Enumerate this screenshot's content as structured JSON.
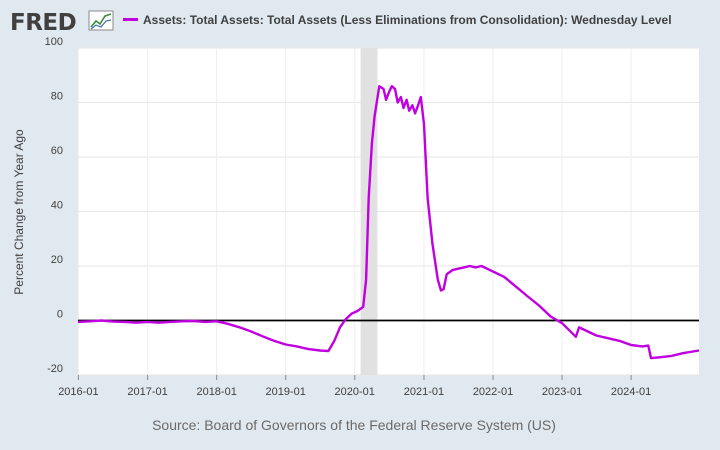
{
  "header": {
    "logo_text": "FRED",
    "logo_icon": "fred-chart-icon",
    "series_title": "Assets: Total Assets: Total Assets (Less Eliminations from Consolidation): Wednesday Level"
  },
  "footer": {
    "source": "Source: Board of Governors of the Federal Reserve System (US)"
  },
  "colors": {
    "background": "#e1e9f0",
    "plot_background": "#ffffff",
    "series": "#c000e0",
    "recession_band": "#e1e1e1",
    "zero_line": "#000000",
    "text": "#595959"
  },
  "chart_data": {
    "type": "line",
    "title": "",
    "xlabel": "",
    "ylabel": "Percent Change from Year Ago",
    "xlim": [
      "2015-12-30",
      "2024-12-25"
    ],
    "ylim": [
      -20,
      100
    ],
    "grid": true,
    "legend": "top",
    "y_ticks": [
      {
        "value": -20,
        "label": "-20"
      },
      {
        "value": 0,
        "label": "0"
      },
      {
        "value": 20,
        "label": "20"
      },
      {
        "value": 40,
        "label": "40"
      },
      {
        "value": 60,
        "label": "60"
      },
      {
        "value": 80,
        "label": "80"
      },
      {
        "value": 100,
        "label": "100"
      }
    ],
    "x_ticks": [
      {
        "value": "2016-01-01",
        "label": "2016-01"
      },
      {
        "value": "2017-01-01",
        "label": "2017-01"
      },
      {
        "value": "2018-01-01",
        "label": "2018-01"
      },
      {
        "value": "2019-01-01",
        "label": "2019-01"
      },
      {
        "value": "2020-01-01",
        "label": "2020-01"
      },
      {
        "value": "2021-01-01",
        "label": "2021-01"
      },
      {
        "value": "2022-01-01",
        "label": "2022-01"
      },
      {
        "value": "2023-01-01",
        "label": "2023-01"
      },
      {
        "value": "2024-01-01",
        "label": "2024-01"
      }
    ],
    "recession": {
      "start": "2020-02-01",
      "end": "2020-04-30"
    },
    "series": [
      {
        "name": "Assets: Total Assets: Total Assets (Less Eliminations from Consolidation): Wednesday Level",
        "points": [
          [
            "2015-12-30",
            -0.5
          ],
          [
            "2016-03-01",
            -0.3
          ],
          [
            "2016-05-01",
            0.0
          ],
          [
            "2016-07-01",
            -0.4
          ],
          [
            "2016-09-01",
            -0.5
          ],
          [
            "2016-11-01",
            -0.8
          ],
          [
            "2017-01-01",
            -0.5
          ],
          [
            "2017-03-01",
            -0.8
          ],
          [
            "2017-05-01",
            -0.5
          ],
          [
            "2017-07-01",
            -0.3
          ],
          [
            "2017-09-01",
            -0.2
          ],
          [
            "2017-11-01",
            -0.5
          ],
          [
            "2018-01-01",
            -0.3
          ],
          [
            "2018-03-01",
            -1.2
          ],
          [
            "2018-05-01",
            -2.5
          ],
          [
            "2018-07-01",
            -4.0
          ],
          [
            "2018-09-01",
            -5.8
          ],
          [
            "2018-11-01",
            -7.5
          ],
          [
            "2019-01-01",
            -8.8
          ],
          [
            "2019-03-01",
            -9.5
          ],
          [
            "2019-05-01",
            -10.5
          ],
          [
            "2019-07-01",
            -11.0
          ],
          [
            "2019-08-15",
            -11.2
          ],
          [
            "2019-09-15",
            -7.5
          ],
          [
            "2019-10-15",
            -2.5
          ],
          [
            "2019-11-15",
            0.5
          ],
          [
            "2019-12-15",
            2.5
          ],
          [
            "2020-01-15",
            3.5
          ],
          [
            "2020-02-15",
            5.0
          ],
          [
            "2020-03-01",
            15.0
          ],
          [
            "2020-03-15",
            45.0
          ],
          [
            "2020-04-01",
            65.0
          ],
          [
            "2020-04-15",
            75.0
          ],
          [
            "2020-05-01",
            82.0
          ],
          [
            "2020-05-10",
            86.0
          ],
          [
            "2020-06-01",
            85.0
          ],
          [
            "2020-06-15",
            81.0
          ],
          [
            "2020-07-01",
            84.0
          ],
          [
            "2020-07-15",
            86.0
          ],
          [
            "2020-08-01",
            85.0
          ],
          [
            "2020-08-15",
            80.0
          ],
          [
            "2020-09-01",
            82.0
          ],
          [
            "2020-09-15",
            78.0
          ],
          [
            "2020-10-01",
            81.0
          ],
          [
            "2020-10-15",
            77.0
          ],
          [
            "2020-11-01",
            79.0
          ],
          [
            "2020-11-15",
            76.0
          ],
          [
            "2020-12-01",
            79.0
          ],
          [
            "2020-12-15",
            82.0
          ],
          [
            "2021-01-01",
            72.0
          ],
          [
            "2021-01-20",
            45.0
          ],
          [
            "2021-02-15",
            28.0
          ],
          [
            "2021-03-15",
            15.0
          ],
          [
            "2021-04-01",
            11.0
          ],
          [
            "2021-04-15",
            11.5
          ],
          [
            "2021-05-01",
            17.0
          ],
          [
            "2021-06-01",
            18.5
          ],
          [
            "2021-07-01",
            19.0
          ],
          [
            "2021-08-01",
            19.5
          ],
          [
            "2021-09-01",
            20.0
          ],
          [
            "2021-10-01",
            19.5
          ],
          [
            "2021-11-01",
            20.0
          ],
          [
            "2021-12-01",
            19.0
          ],
          [
            "2022-01-01",
            18.0
          ],
          [
            "2022-03-01",
            16.0
          ],
          [
            "2022-05-01",
            12.5
          ],
          [
            "2022-07-01",
            9.0
          ],
          [
            "2022-09-01",
            5.5
          ],
          [
            "2022-11-01",
            1.5
          ],
          [
            "2023-01-01",
            -1.0
          ],
          [
            "2023-03-15",
            -6.0
          ],
          [
            "2023-04-01",
            -2.5
          ],
          [
            "2023-05-01",
            -3.5
          ],
          [
            "2023-07-01",
            -5.5
          ],
          [
            "2023-09-01",
            -6.5
          ],
          [
            "2023-11-01",
            -7.5
          ],
          [
            "2024-01-01",
            -9.0
          ],
          [
            "2024-03-01",
            -9.5
          ],
          [
            "2024-04-01",
            -9.2
          ],
          [
            "2024-04-15",
            -13.8
          ],
          [
            "2024-06-01",
            -13.5
          ],
          [
            "2024-08-01",
            -13.0
          ],
          [
            "2024-10-01",
            -12.0
          ],
          [
            "2024-12-25",
            -11.0
          ]
        ]
      }
    ]
  }
}
